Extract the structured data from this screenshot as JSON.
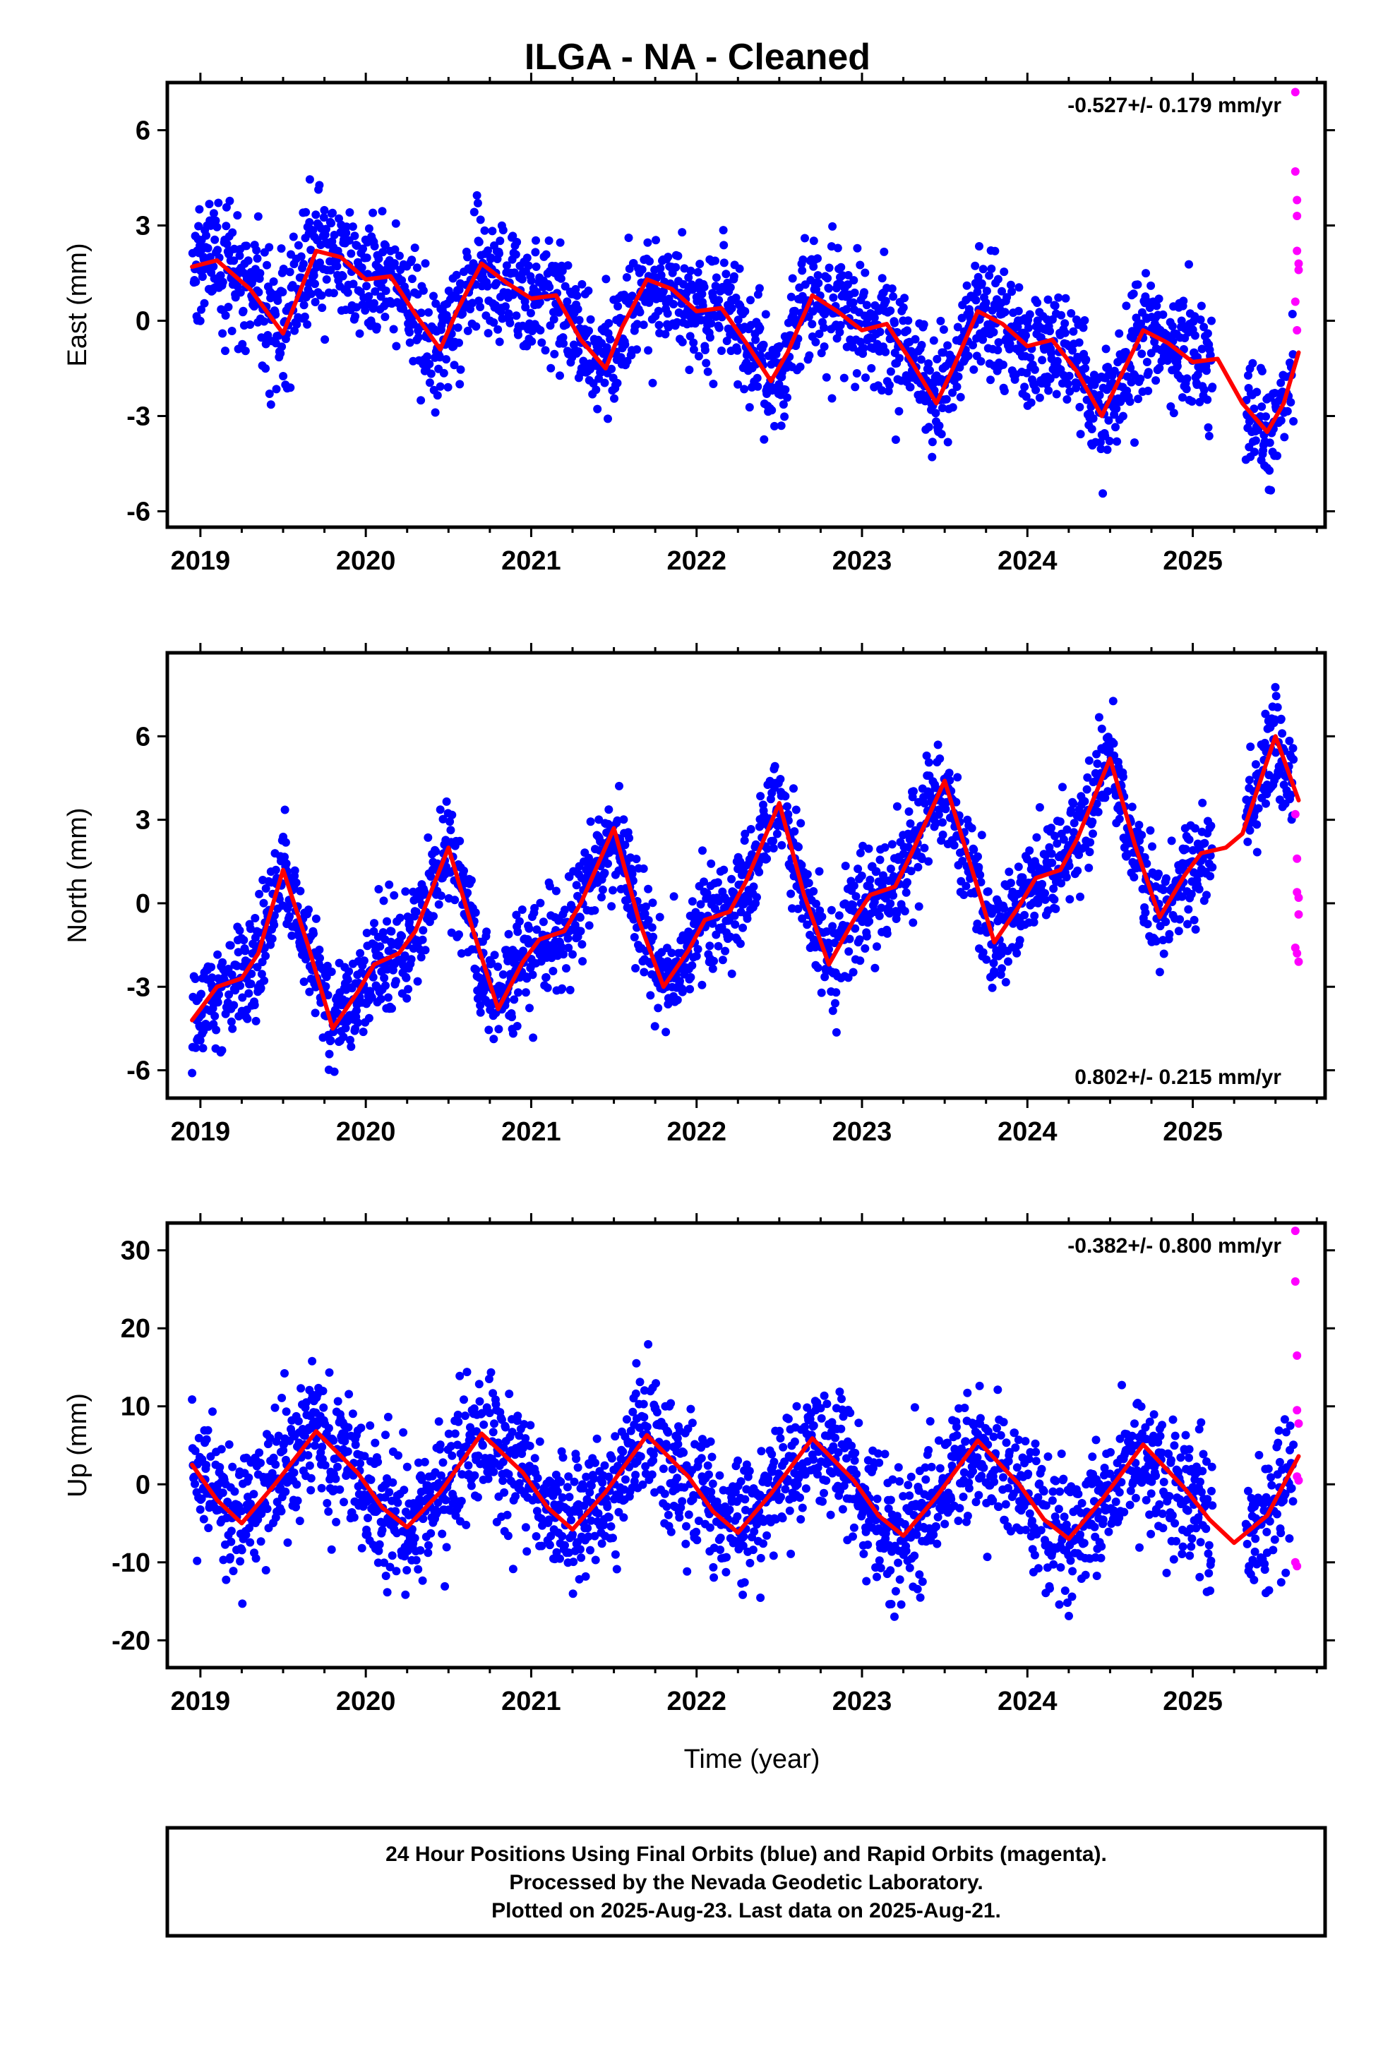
{
  "title": "ILGA  - NA - Cleaned",
  "colors": {
    "final": "#0000ff",
    "rapid": "#ff00ff",
    "model": "#ff0000",
    "frame": "#000000"
  },
  "x_axis": {
    "label": "Time (year)",
    "range": [
      2018.8,
      2025.8
    ],
    "ticks": [
      "2019",
      "2020",
      "2021",
      "2022",
      "2023",
      "2024",
      "2025"
    ]
  },
  "footer": {
    "lines": [
      "24 Hour Positions Using Final Orbits (blue) and Rapid Orbits (magenta).",
      "Processed by the Nevada Geodetic Laboratory.",
      "Plotted on 2025-Aug-23. Last data on 2025-Aug-21."
    ]
  },
  "chart_data": [
    {
      "type": "scatter",
      "ylabel": "East (mm)",
      "rate": "-0.527+/- 0.179 mm/yr",
      "rate_position": "top-right",
      "xlim": [
        2018.8,
        2025.8
      ],
      "ylim": [
        -6.5,
        7.5
      ],
      "yticks": [
        -6,
        -3,
        0,
        3,
        6
      ],
      "series": [
        {
          "role": "model",
          "x": [
            2018.95,
            2019.1,
            2019.3,
            2019.5,
            2019.7,
            2019.85,
            2020.0,
            2020.15,
            2020.3,
            2020.45,
            2020.55,
            2020.7,
            2020.85,
            2021.0,
            2021.15,
            2021.3,
            2021.45,
            2021.55,
            2021.7,
            2021.85,
            2022.0,
            2022.15,
            2022.3,
            2022.45,
            2022.55,
            2022.7,
            2022.85,
            2023.0,
            2023.15,
            2023.3,
            2023.45,
            2023.55,
            2023.7,
            2023.85,
            2024.0,
            2024.15,
            2024.3,
            2024.45,
            2024.55,
            2024.7,
            2024.85,
            2025.0,
            2025.15,
            2025.3,
            2025.45,
            2025.55,
            2025.64
          ],
          "values": [
            1.7,
            1.9,
            1.0,
            -0.4,
            2.2,
            2.0,
            1.3,
            1.4,
            0.2,
            -0.9,
            0.3,
            1.8,
            1.2,
            0.7,
            0.8,
            -0.6,
            -1.5,
            -0.2,
            1.3,
            1.0,
            0.3,
            0.4,
            -0.7,
            -1.9,
            -1.0,
            0.8,
            0.3,
            -0.3,
            -0.1,
            -1.3,
            -2.6,
            -1.5,
            0.3,
            -0.1,
            -0.8,
            -0.6,
            -1.6,
            -3.0,
            -1.9,
            -0.3,
            -0.7,
            -1.3,
            -1.2,
            -2.6,
            -3.5,
            -2.6,
            -1.0
          ]
        },
        {
          "role": "rapid",
          "x": [
            2025.62,
            2025.62,
            2025.63,
            2025.63,
            2025.63,
            2025.64,
            2025.64,
            2025.62,
            2025.63
          ],
          "values": [
            7.2,
            4.7,
            3.8,
            3.3,
            2.2,
            1.8,
            1.6,
            0.6,
            -0.3
          ]
        }
      ]
    },
    {
      "type": "scatter",
      "ylabel": "North (mm)",
      "rate": "0.802+/- 0.215 mm/yr",
      "rate_position": "bottom-right",
      "xlim": [
        2018.8,
        2025.8
      ],
      "ylim": [
        -7,
        9
      ],
      "yticks": [
        -6,
        -3,
        0,
        3,
        6
      ],
      "series": [
        {
          "role": "model",
          "x": [
            2018.95,
            2019.1,
            2019.25,
            2019.35,
            2019.5,
            2019.65,
            2019.8,
            2019.95,
            2020.05,
            2020.2,
            2020.3,
            2020.5,
            2020.65,
            2020.8,
            2020.95,
            2021.05,
            2021.2,
            2021.3,
            2021.5,
            2021.65,
            2021.8,
            2021.95,
            2022.05,
            2022.2,
            2022.3,
            2022.5,
            2022.65,
            2022.8,
            2022.95,
            2023.05,
            2023.2,
            2023.3,
            2023.5,
            2023.65,
            2023.8,
            2023.95,
            2024.05,
            2024.2,
            2024.3,
            2024.5,
            2024.65,
            2024.8,
            2024.95,
            2025.05,
            2025.2,
            2025.3,
            2025.5,
            2025.64
          ],
          "values": [
            -4.2,
            -3.0,
            -2.7,
            -1.8,
            1.2,
            -1.5,
            -4.5,
            -3.2,
            -2.2,
            -1.8,
            -1.0,
            2.0,
            -1.0,
            -3.8,
            -2.1,
            -1.3,
            -1.0,
            0.0,
            2.7,
            -0.6,
            -3.0,
            -1.7,
            -0.6,
            -0.3,
            0.8,
            3.6,
            0.3,
            -2.2,
            -0.6,
            0.3,
            0.6,
            1.8,
            4.4,
            1.5,
            -1.4,
            -0.1,
            0.9,
            1.2,
            2.3,
            5.2,
            2.1,
            -0.5,
            1.0,
            1.8,
            2.0,
            2.5,
            6.0,
            3.7
          ]
        },
        {
          "role": "rapid",
          "x": [
            2025.62,
            2025.63,
            2025.63,
            2025.64,
            2025.64,
            2025.62,
            2025.63,
            2025.64
          ],
          "values": [
            3.2,
            1.6,
            0.4,
            0.2,
            -0.4,
            -1.6,
            -1.8,
            -2.1
          ]
        }
      ]
    },
    {
      "type": "scatter",
      "ylabel": "Up (mm)",
      "rate": "-0.382+/- 0.800 mm/yr",
      "rate_position": "top-right",
      "xlim": [
        2018.8,
        2025.8
      ],
      "ylim": [
        -23.5,
        33.5
      ],
      "yticks": [
        -20,
        -10,
        0,
        10,
        20,
        30
      ],
      "series": [
        {
          "role": "model",
          "x": [
            2018.95,
            2019.1,
            2019.25,
            2019.45,
            2019.7,
            2019.95,
            2020.1,
            2020.25,
            2020.45,
            2020.7,
            2020.95,
            2021.1,
            2021.25,
            2021.45,
            2021.7,
            2021.95,
            2022.1,
            2022.25,
            2022.45,
            2022.7,
            2022.95,
            2023.1,
            2023.25,
            2023.45,
            2023.7,
            2023.95,
            2024.1,
            2024.25,
            2024.45,
            2024.7,
            2024.95,
            2025.1,
            2025.25,
            2025.45,
            2025.64
          ],
          "values": [
            2.5,
            -2.0,
            -5.0,
            0.0,
            6.8,
            1.5,
            -3.0,
            -5.5,
            -1.0,
            6.5,
            1.5,
            -3.0,
            -5.8,
            -1.0,
            6.3,
            1.0,
            -3.5,
            -6.2,
            -1.2,
            5.9,
            0.5,
            -4.0,
            -6.6,
            -1.6,
            5.6,
            0.0,
            -4.5,
            -7.0,
            -2.0,
            5.1,
            -0.5,
            -4.5,
            -7.5,
            -4.0,
            3.6
          ]
        },
        {
          "role": "rapid",
          "x": [
            2025.62,
            2025.62,
            2025.63,
            2025.63,
            2025.64,
            2025.63,
            2025.64,
            2025.62,
            2025.63
          ],
          "values": [
            32.5,
            26.0,
            16.5,
            9.5,
            7.8,
            1.0,
            0.5,
            -10.0,
            -10.5
          ]
        }
      ]
    }
  ]
}
